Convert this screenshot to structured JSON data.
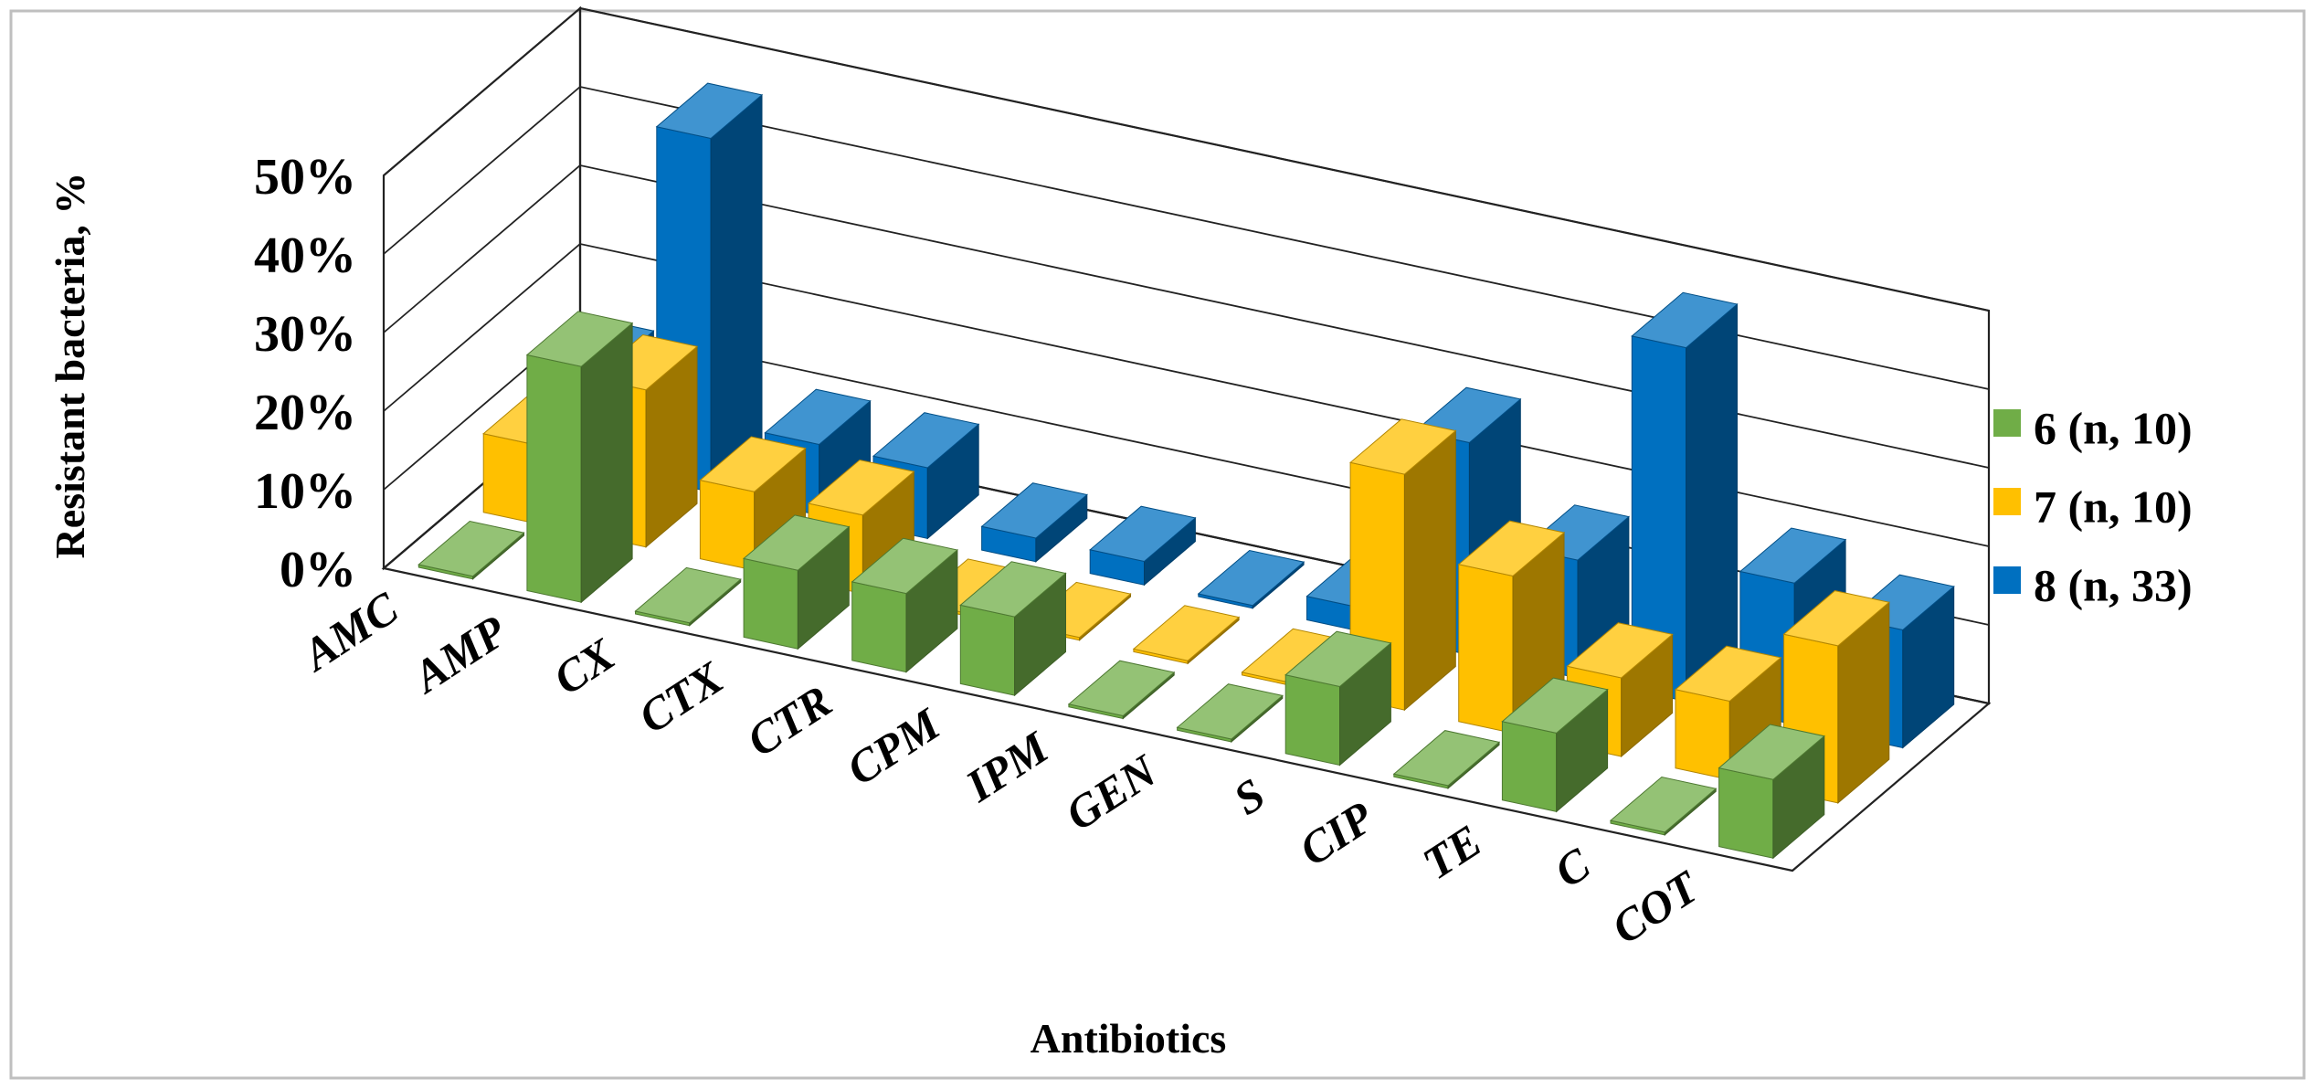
{
  "chart_data": {
    "type": "bar",
    "variant": "3d-clustered-depth",
    "title": "",
    "xlabel": "Antibiotics",
    "ylabel": "Resistant  bacteria,  %",
    "ylim": [
      0,
      50
    ],
    "yticks": [
      "0%",
      "10%",
      "20%",
      "30%",
      "40%",
      "50%"
    ],
    "categories": [
      "AMC",
      "AMP",
      "CX",
      "CTX",
      "CTR",
      "CPM",
      "IPM",
      "GEN",
      "S",
      "CIP",
      "TE",
      "C",
      "COT"
    ],
    "series": [
      {
        "name": "6 (n, 10)",
        "color": "#70ad47",
        "values": [
          0,
          30,
          0,
          10,
          10,
          10,
          0,
          0,
          10,
          0,
          10,
          0,
          10
        ]
      },
      {
        "name": "7 (n, 10)",
        "color": "#ffc000",
        "values": [
          10,
          20,
          10,
          10,
          0,
          0,
          0,
          0,
          30,
          20,
          10,
          10,
          20
        ]
      },
      {
        "name": "8 (n, 33)",
        "color": "#0070c0",
        "values": [
          12,
          45,
          9,
          9,
          3,
          3,
          0,
          3,
          27,
          15,
          45,
          18,
          15
        ]
      }
    ],
    "legend_position": "right",
    "grid": true
  }
}
